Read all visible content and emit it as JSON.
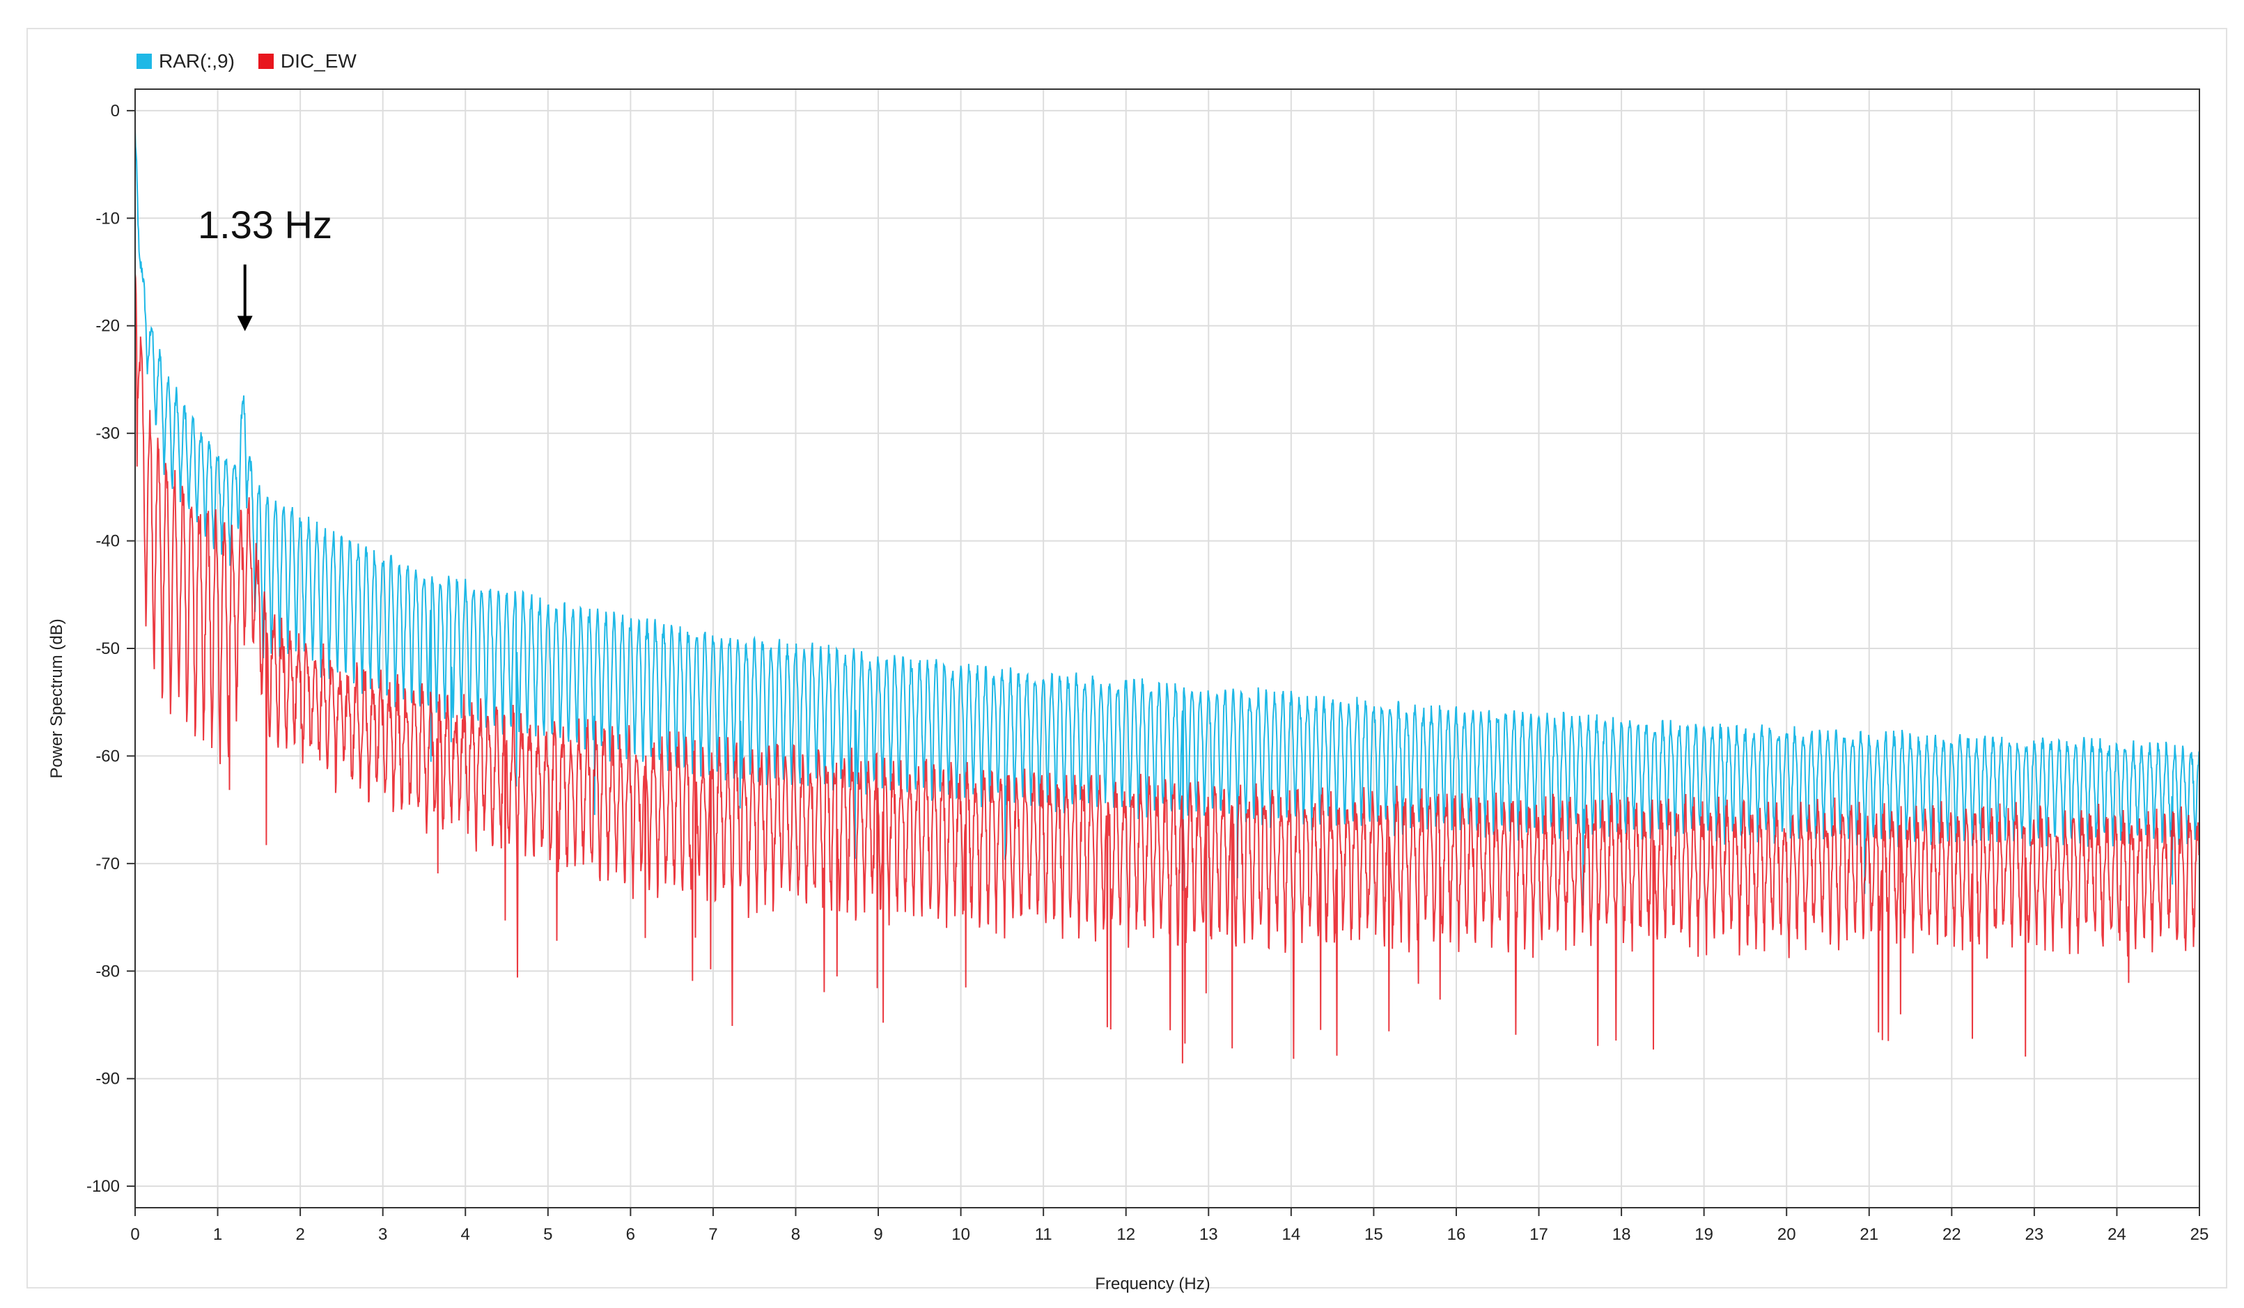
{
  "chart_data": {
    "type": "line",
    "title": "",
    "xlabel": "Frequency (Hz)",
    "ylabel": "Power Spectrum (dB)",
    "xlim": [
      0,
      25
    ],
    "ylim": [
      -102,
      2
    ],
    "x_ticks": [
      "0",
      "1",
      "2",
      "3",
      "4",
      "5",
      "6",
      "7",
      "8",
      "9",
      "10",
      "11",
      "12",
      "13",
      "14",
      "15",
      "16",
      "17",
      "18",
      "19",
      "20",
      "21",
      "22",
      "23",
      "24",
      "25"
    ],
    "y_ticks": [
      "0",
      "-10",
      "-20",
      "-30",
      "-40",
      "-50",
      "-60",
      "-70",
      "-80",
      "-90",
      "-100"
    ],
    "grid": true,
    "legend_position": "top-left",
    "annotation": {
      "text": "1.33 Hz",
      "x": 1.33,
      "y": -20.5
    },
    "series": [
      {
        "name": "RAR(:,9)",
        "color": "#1eb8e6",
        "envelope_x": [
          0,
          0.05,
          0.1,
          0.2,
          0.4,
          0.7,
          1.0,
          1.2,
          1.3,
          1.33,
          1.4,
          1.5,
          1.8,
          2.5,
          3.5,
          5.0,
          7.0,
          10.0,
          13.0,
          16.0,
          19.0,
          22.0,
          25.0
        ],
        "envelope_upper": [
          -2,
          -10,
          -16,
          -20,
          -25,
          -29,
          -32,
          -33,
          -27,
          -24.5,
          -33,
          -35,
          -37,
          -40,
          -43,
          -46,
          -49,
          -52,
          -54,
          -56,
          -57.5,
          -58.5,
          -59.5
        ],
        "envelope_lower": [
          -5,
          -14,
          -21,
          -28,
          -35,
          -38,
          -41,
          -42,
          -37,
          -35,
          -42,
          -52,
          -50,
          -53,
          -56,
          -59,
          -62,
          -64,
          -66,
          -67,
          -67.5,
          -68,
          -68
        ]
      },
      {
        "name": "DIC_EW",
        "color": "#e8161e",
        "envelope_x": [
          0,
          0.05,
          0.1,
          0.2,
          0.4,
          0.7,
          1.0,
          1.2,
          1.3,
          1.35,
          1.45,
          1.6,
          2.0,
          3.0,
          4.0,
          5.0,
          7.0,
          10.0,
          13.0,
          16.0,
          19.0,
          22.0,
          25.0
        ],
        "envelope_upper": [
          -12,
          -18,
          -25,
          -30,
          -34,
          -37,
          -39,
          -40,
          -38,
          -36,
          -40,
          -47,
          -50,
          -54,
          -56,
          -58,
          -60,
          -62,
          -64,
          -65,
          -65.5,
          -66,
          -66.5
        ],
        "envelope_lower": [
          -20,
          -32,
          -45,
          -52,
          -55,
          -58,
          -60,
          -58,
          -52,
          -48,
          -50,
          -57,
          -60,
          -64,
          -67,
          -70,
          -73,
          -75,
          -77,
          -77,
          -77,
          -77,
          -77
        ]
      }
    ]
  }
}
